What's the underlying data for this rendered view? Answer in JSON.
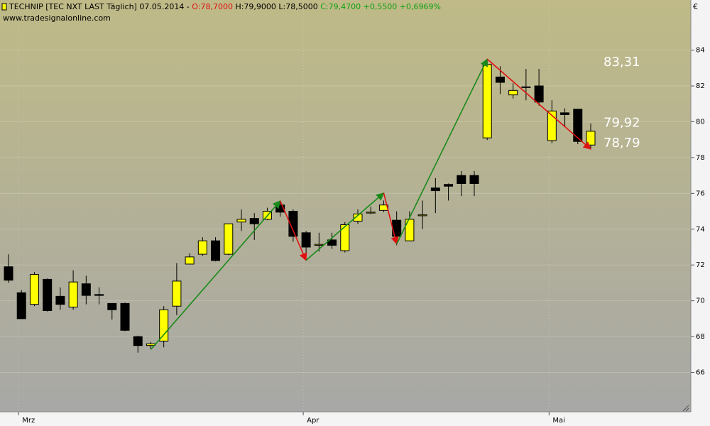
{
  "chart_data": {
    "type": "candlestick",
    "header": {
      "name": "TECHNIP [TEC NXT LAST Täglich] 07.05.2014 - ",
      "open": "O:78,7000",
      "high_low": " H:79,9000 L:78,5000",
      "close": " C:79,4700 +0,5500 +0,6969%"
    },
    "source": "www.tradesignalonline.com",
    "currency": "€",
    "categories": [
      null,
      "Mrz",
      null,
      null,
      null,
      null,
      null,
      null,
      null,
      null,
      null,
      null,
      null,
      null,
      null,
      null,
      null,
      null,
      null,
      null,
      null,
      null,
      null,
      "Apr",
      null,
      null,
      null,
      null,
      null,
      null,
      null,
      null,
      null,
      null,
      null,
      null,
      null,
      null,
      null,
      null,
      null,
      null,
      "Mai",
      null,
      null,
      null
    ],
    "open": [
      71.9,
      70.45,
      69.8,
      71.2,
      70.25,
      69.65,
      70.95,
      70.35,
      69.85,
      69.85,
      68.0,
      67.5,
      67.75,
      69.7,
      72.05,
      72.6,
      73.35,
      72.6,
      74.4,
      74.6,
      74.55,
      75.35,
      75.0,
      73.8,
      73.1,
      73.4,
      72.8,
      74.45,
      74.9,
      75.05,
      74.5,
      73.35,
      74.75,
      76.3,
      76.5,
      77.0,
      77.0,
      79.1,
      82.5,
      81.5,
      81.95,
      82.0,
      78.95,
      80.5,
      80.7,
      78.7
    ],
    "high": [
      72.6,
      70.6,
      71.6,
      71.25,
      70.75,
      71.7,
      71.4,
      70.75,
      69.85,
      69.9,
      68.05,
      67.7,
      69.7,
      72.1,
      72.65,
      73.55,
      73.55,
      74.3,
      75.1,
      74.9,
      75.2,
      75.55,
      75.1,
      73.9,
      73.8,
      73.8,
      74.4,
      75.1,
      75.25,
      75.6,
      75.0,
      75.0,
      75.6,
      76.85,
      76.55,
      77.25,
      77.25,
      83.5,
      83.1,
      82.15,
      82.95,
      82.95,
      81.2,
      80.75,
      80.7,
      79.9
    ],
    "low": [
      71.0,
      69.0,
      69.7,
      69.4,
      69.5,
      69.5,
      69.8,
      69.8,
      68.95,
      68.3,
      67.1,
      67.3,
      67.4,
      69.2,
      72.05,
      72.5,
      72.2,
      72.55,
      73.9,
      73.4,
      74.5,
      74.7,
      73.3,
      72.6,
      72.75,
      72.9,
      72.7,
      74.3,
      74.85,
      74.95,
      73.1,
      73.35,
      74.0,
      74.9,
      75.6,
      75.85,
      75.85,
      78.98,
      81.55,
      81.3,
      81.2,
      80.9,
      78.8,
      79.75,
      78.75,
      78.5
    ],
    "close": [
      71.15,
      69.0,
      71.47,
      69.45,
      69.8,
      71.05,
      70.3,
      70.3,
      69.5,
      68.35,
      67.5,
      67.6,
      69.5,
      71.1,
      72.45,
      73.35,
      72.25,
      74.3,
      74.55,
      74.3,
      75.0,
      74.95,
      73.6,
      73.0,
      73.15,
      73.1,
      74.25,
      74.85,
      74.95,
      75.35,
      73.6,
      74.55,
      74.8,
      76.15,
      76.4,
      76.55,
      76.55,
      83.2,
      82.2,
      81.75,
      81.95,
      81.1,
      80.6,
      80.4,
      78.9,
      79.47
    ],
    "up_color": "#ffff00",
    "down_color": "#000000",
    "ylim": [
      63.8,
      86.8
    ],
    "yticks": [
      66,
      68,
      70,
      72,
      74,
      76,
      78,
      80,
      82,
      84
    ],
    "grid": true,
    "arrows": [
      {
        "color": "#1a8a1a",
        "x0": 11,
        "y0": 67.28,
        "x1": 21,
        "y1": 75.58
      },
      {
        "color": "#e01010",
        "x0": 21,
        "y0": 75.58,
        "x1": 23,
        "y1": 72.26
      },
      {
        "color": "#1a8a1a",
        "x0": 23,
        "y0": 72.26,
        "x1": 29,
        "y1": 76.02
      },
      {
        "color": "#e01010",
        "x0": 29,
        "y0": 76.02,
        "x1": 30,
        "y1": 73.17
      },
      {
        "color": "#1a8a1a",
        "x0": 30,
        "y0": 73.17,
        "x1": 37,
        "y1": 83.5
      },
      {
        "color": "#e01010",
        "x0": 37,
        "y0": 83.5,
        "x1": 45,
        "y1": 78.47
      }
    ],
    "price_labels": [
      {
        "value": 83.31,
        "label": "83,31"
      },
      {
        "value": 79.92,
        "label": "79,92"
      },
      {
        "value": 78.79,
        "label": "78,79"
      }
    ]
  }
}
